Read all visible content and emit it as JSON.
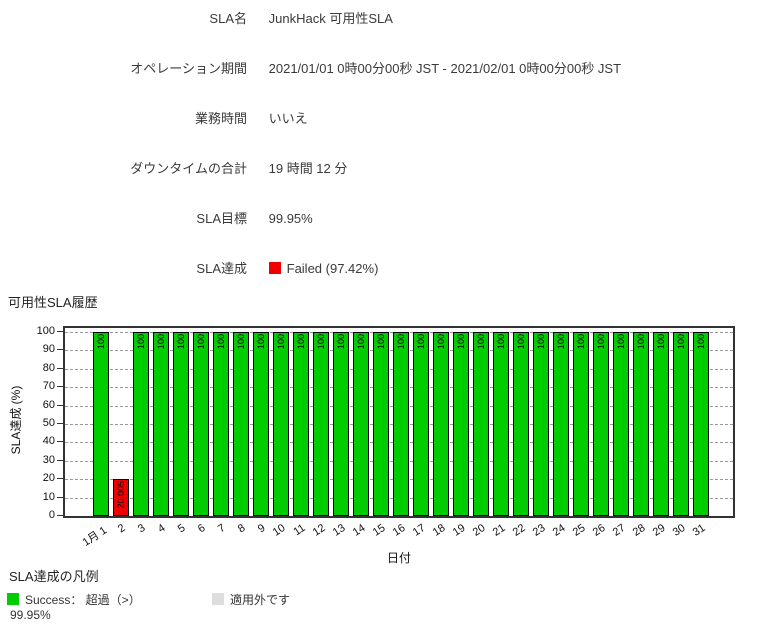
{
  "info": {
    "rows": [
      {
        "label": "SLA名",
        "value": "JunkHack 可用性SLA"
      },
      {
        "label": "オペレーション期間",
        "value": "2021/01/01 0時00分00秒 JST - 2021/02/01 0時00分00秒 JST"
      },
      {
        "label": "業務時間",
        "value": "いいえ"
      },
      {
        "label": "ダウンタイムの合計",
        "value": "19 時間 12 分"
      },
      {
        "label": "SLA目標",
        "value": "99.95%"
      },
      {
        "label": "SLA達成",
        "value": "Failed (97.42%)"
      }
    ],
    "failed_color": "#ee0000"
  },
  "chart_data": {
    "type": "bar",
    "title": "可用性SLA履歴",
    "xlabel": "日付",
    "ylabel": "SLA達成 (%)",
    "ylim": [
      0,
      100
    ],
    "ytick_step": 10,
    "grid": "dashed-horizontal",
    "threshold": 99.95,
    "color_success": "#00cc00",
    "color_fail": "#ee0000",
    "categories": [
      "1月 1",
      "2",
      "3",
      "4",
      "5",
      "6",
      "7",
      "8",
      "9",
      "10",
      "11",
      "12",
      "13",
      "14",
      "15",
      "16",
      "17",
      "18",
      "19",
      "20",
      "21",
      "22",
      "23",
      "24",
      "25",
      "26",
      "27",
      "28",
      "29",
      "30",
      "31"
    ],
    "values": [
      100,
      20.005,
      100,
      100,
      100,
      100,
      100,
      100,
      100,
      100,
      100,
      100,
      100,
      100,
      100,
      100,
      100,
      100,
      100,
      100,
      100,
      100,
      100,
      100,
      100,
      100,
      100,
      100,
      100,
      100,
      100
    ]
  },
  "legend": {
    "title": "SLA達成の凡例",
    "items": [
      {
        "swatch_color": "#00cc00",
        "label": "Success： 超過（>）",
        "sublabel": "99.95%"
      },
      {
        "swatch_color": "#dddddd",
        "label": "適用外です"
      }
    ]
  }
}
